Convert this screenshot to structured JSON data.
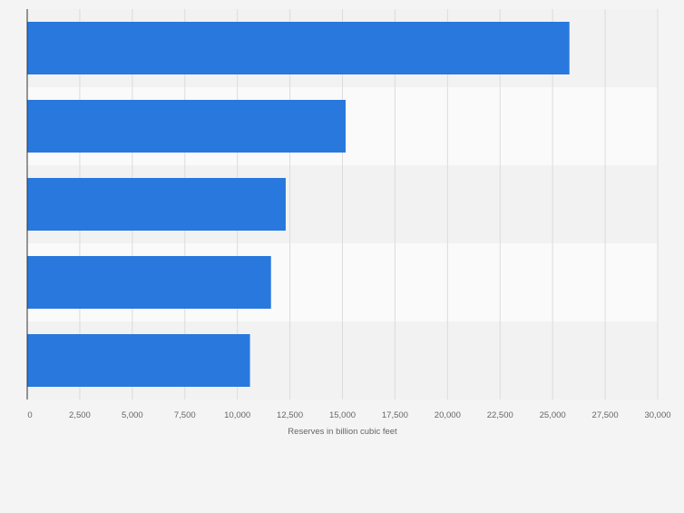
{
  "colors": {
    "bar": "#2878dd",
    "band_dark": "#f2f2f2",
    "band_light": "#fafafa",
    "grid": "#dcdcdc",
    "axis": "#333333",
    "tick_text": "#666666",
    "page_bg": "#f4f4f4"
  },
  "chart_data": {
    "type": "bar",
    "orientation": "horizontal",
    "categories": [
      "",
      "",
      "",
      "",
      ""
    ],
    "values": [
      25800,
      15150,
      12300,
      11600,
      10600
    ],
    "xlabel": "Reserves in billion cubic feet",
    "xlim": [
      0,
      30000
    ],
    "xticks": [
      0,
      2500,
      5000,
      7500,
      10000,
      12500,
      15000,
      17500,
      20000,
      22500,
      25000,
      27500,
      30000
    ],
    "xtick_labels": [
      "0",
      "2,500",
      "5,000",
      "7,500",
      "10,000",
      "12,500",
      "15,000",
      "17,500",
      "20,000",
      "22,500",
      "25,000",
      "27,500",
      "30,000"
    ],
    "grid": true
  }
}
